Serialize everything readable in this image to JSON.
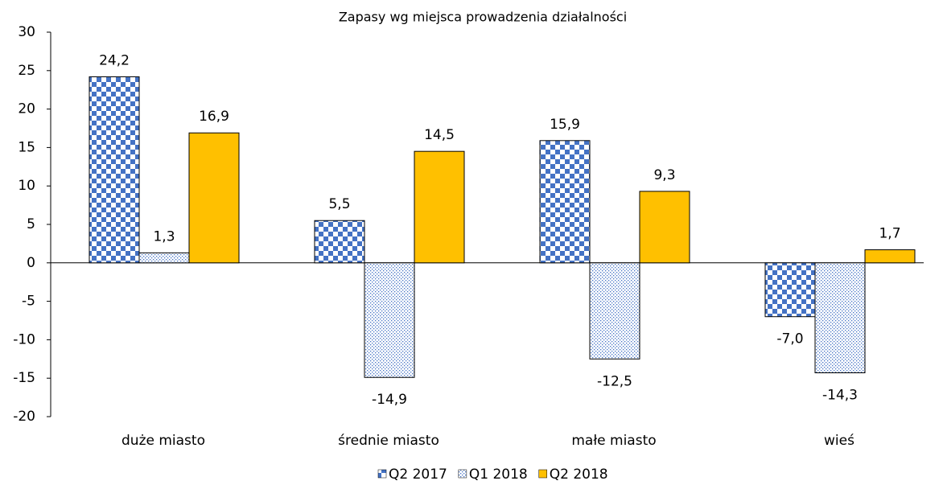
{
  "chart_data": {
    "type": "bar",
    "title": "Zapasy wg miejsca prowadzenia działalności",
    "categories": [
      "duże miasto",
      "średnie miasto",
      "małe miasto",
      "wieś"
    ],
    "series": [
      {
        "name": "Q2 2017",
        "color": "#4472c4",
        "pattern": "checker",
        "values": [
          24.2,
          5.5,
          15.9,
          -7.0
        ],
        "value_labels": [
          "24,2",
          "5,5",
          "15,9",
          "-7,0"
        ]
      },
      {
        "name": "Q1 2018",
        "color": "#4472c4",
        "pattern": "dots",
        "values": [
          1.3,
          -14.9,
          -12.5,
          -14.3
        ],
        "value_labels": [
          "1,3",
          "-14,9",
          "-12,5",
          "-14,3"
        ]
      },
      {
        "name": "Q2 2018",
        "color": "#ffc000",
        "pattern": "solid",
        "values": [
          16.9,
          14.5,
          9.3,
          1.7
        ],
        "value_labels": [
          "16,9",
          "14,5",
          "9,3",
          "1,7"
        ]
      }
    ],
    "ylim": [
      -20,
      30
    ],
    "yticks": [
      -20,
      -15,
      -10,
      -5,
      0,
      5,
      10,
      15,
      20,
      25,
      30
    ],
    "legend": "bottom"
  }
}
